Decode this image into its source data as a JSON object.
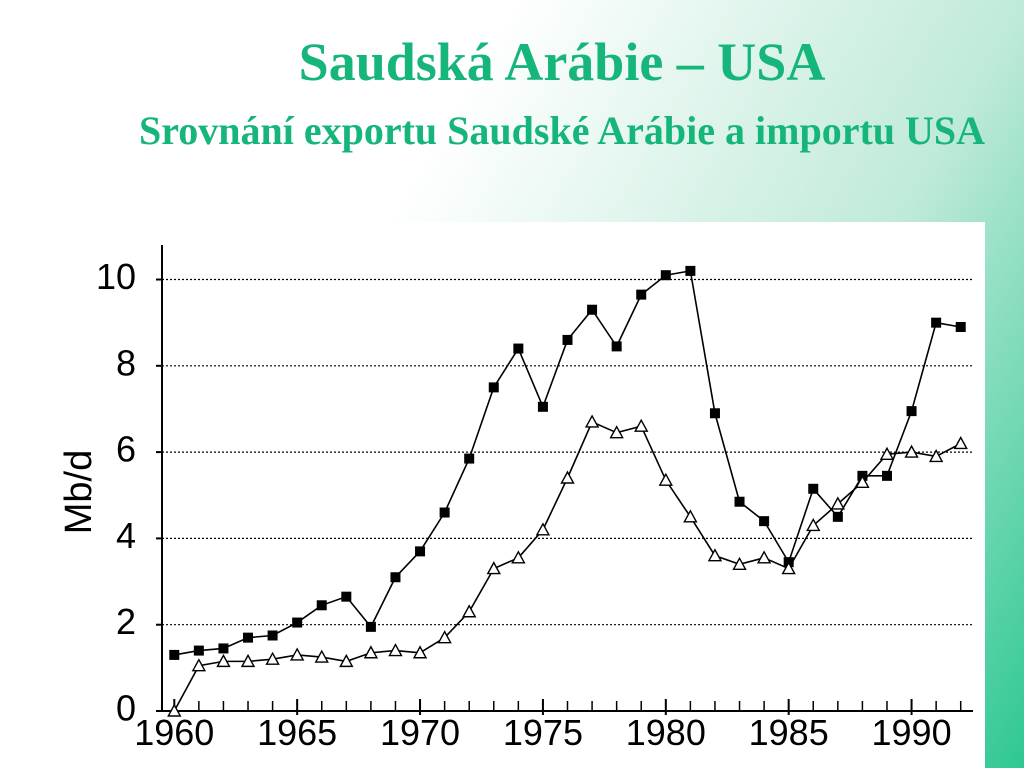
{
  "title": "Saudská Arábie – USA",
  "subtitle": "Srovnání exportu Saudské Arábie a importu USA",
  "chart_data": {
    "type": "line",
    "y_label": "Mb/d",
    "x": [
      1960,
      1961,
      1962,
      1963,
      1964,
      1965,
      1966,
      1967,
      1968,
      1969,
      1970,
      1971,
      1972,
      1973,
      1974,
      1975,
      1976,
      1977,
      1978,
      1979,
      1980,
      1981,
      1982,
      1983,
      1984,
      1985,
      1986,
      1987,
      1988,
      1989,
      1990,
      1991,
      1992
    ],
    "series": [
      {
        "color": "#000000",
        "marker": "square",
        "values": [
          1.3,
          1.4,
          1.45,
          1.7,
          1.75,
          2.05,
          2.45,
          2.65,
          1.95,
          3.1,
          3.7,
          4.6,
          5.85,
          7.5,
          8.4,
          7.05,
          8.6,
          9.3,
          8.45,
          9.65,
          10.1,
          10.2,
          6.9,
          4.85,
          4.4,
          3.45,
          5.15,
          4.5,
          5.45,
          5.45,
          6.95,
          9.0,
          8.9
        ]
      },
      {
        "color": "#000000",
        "marker": "triangle",
        "values": [
          0,
          1.05,
          1.15,
          1.15,
          1.2,
          1.3,
          1.25,
          1.15,
          1.35,
          1.4,
          1.35,
          1.7,
          2.3,
          3.3,
          3.55,
          4.2,
          5.4,
          6.7,
          6.45,
          6.6,
          5.35,
          4.5,
          3.6,
          3.4,
          3.55,
          3.3,
          4.3,
          4.8,
          5.3,
          5.95,
          6.0,
          5.9,
          6.2
        ]
      }
    ],
    "xlim": [
      1959.5,
      1992.5
    ],
    "xticks": [
      1960,
      1965,
      1970,
      1975,
      1980,
      1985,
      1990
    ],
    "ylim": [
      0,
      10.8
    ],
    "yticks": [
      0,
      2,
      4,
      6,
      8,
      10
    ],
    "grid": true
  }
}
